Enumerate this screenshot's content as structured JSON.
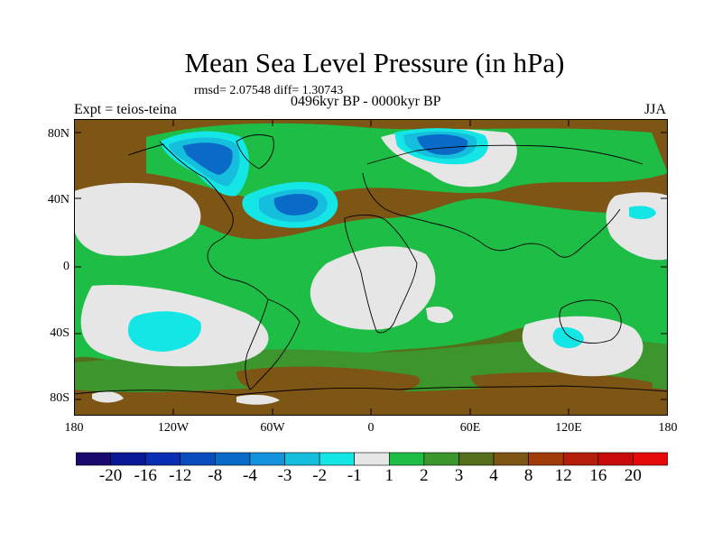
{
  "title": "Mean Sea Level Pressure (in hPa)",
  "stats": "rmsd= 2.07548 diff= 1.30743",
  "experiment": "Expt = teios-teina",
  "period": "0496kyr BP - 0000kyr BP",
  "season": "JJA",
  "lat_ticks": [
    "80N",
    "40N",
    "0",
    "40S",
    "80S"
  ],
  "lon_ticks": [
    "180",
    "120W",
    "60W",
    "0",
    "60E",
    "120E",
    "180"
  ],
  "legend": {
    "labels": [
      "-20",
      "-16",
      "-12",
      "-8",
      "-4",
      "-3",
      "-2",
      "-1",
      "1",
      "2",
      "3",
      "4",
      "8",
      "12",
      "16",
      "20"
    ],
    "colors": [
      "#1a0a6e",
      "#0a1a96",
      "#0a2db4",
      "#0a4bbe",
      "#0a6ac8",
      "#1492dc",
      "#14bedc",
      "#14e6e6",
      "#e6e6e6",
      "#1ebe46",
      "#3c962d",
      "#556e19",
      "#7d5514",
      "#a03c0a",
      "#b41e0a",
      "#c80a0a",
      "#e60a0a"
    ]
  }
}
